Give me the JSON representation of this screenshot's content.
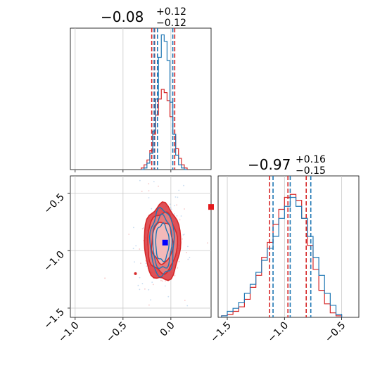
{
  "chart_data": {
    "type": "corner",
    "grid": true,
    "colors": {
      "red": "#d62728",
      "blue": "#1f77b4",
      "marker_blue": "#0000ff"
    },
    "param_ranges": {
      "p1": [
        -1.05,
        0.42
      ],
      "p2": [
        -1.58,
        -0.35
      ]
    },
    "ticks": {
      "p1": [
        -1.0,
        -0.5,
        0.0
      ],
      "p1_labels": [
        "−1.0",
        "−0.5",
        "0.0"
      ],
      "p2": [
        -1.5,
        -1.0,
        -0.5
      ],
      "p2_labels": [
        "−1.5",
        "−1.0",
        "−0.5"
      ]
    },
    "titles": [
      {
        "main": "−0.08",
        "plus": "+0.12",
        "minus": "−0.12"
      },
      {
        "main": "−0.97",
        "plus": "+0.16",
        "minus": "−0.15"
      }
    ],
    "hist_p1": {
      "bin_edges": [
        -0.31,
        -0.28,
        -0.25,
        -0.22,
        -0.19,
        -0.16,
        -0.13,
        -0.1,
        -0.07,
        -0.04,
        -0.01,
        0.02,
        0.05,
        0.08,
        0.11,
        0.14,
        0.17
      ],
      "red": [
        1,
        3,
        6,
        12,
        22,
        34,
        44,
        50,
        48,
        43,
        33,
        22,
        13,
        7,
        3,
        1
      ],
      "blue": [
        0,
        1,
        4,
        10,
        24,
        44,
        70,
        84,
        80,
        68,
        42,
        22,
        9,
        3,
        1,
        0
      ],
      "quantile_lines_red": [
        -0.2,
        -0.17,
        0.04
      ],
      "quantile_lines_blue": [
        -0.175,
        -0.14,
        0.02
      ]
    },
    "hist_p2": {
      "bin_edges": [
        -1.55,
        -1.5,
        -1.45,
        -1.4,
        -1.35,
        -1.3,
        -1.25,
        -1.2,
        -1.15,
        -1.1,
        -1.05,
        -1.0,
        -0.95,
        -0.9,
        -0.85,
        -0.8,
        -0.75,
        -0.7,
        -0.65,
        -0.6,
        -0.55,
        -0.5
      ],
      "red": [
        1,
        2,
        4,
        7,
        12,
        20,
        28,
        40,
        50,
        62,
        72,
        80,
        82,
        78,
        66,
        48,
        32,
        18,
        9,
        3,
        1
      ],
      "blue": [
        1,
        4,
        6,
        10,
        16,
        22,
        30,
        38,
        46,
        54,
        66,
        74,
        80,
        74,
        66,
        54,
        40,
        28,
        16,
        8,
        2
      ],
      "quantile_lines_red": [
        -1.13,
        -0.97,
        -0.81
      ],
      "quantile_lines_blue": [
        -1.1,
        -0.95,
        -0.77
      ]
    },
    "scatter_2d": {
      "center": [
        -0.09,
        -0.93
      ],
      "red_contour_sigmas": [
        [
          0.11,
          0.18
        ],
        [
          0.155,
          0.26
        ],
        [
          0.19,
          0.33
        ]
      ],
      "blue_contour_sigmas": [
        [
          0.07,
          0.16
        ],
        [
          0.1,
          0.23
        ],
        [
          0.125,
          0.29
        ]
      ],
      "blue_marker": [
        -0.06,
        -0.93
      ],
      "red_marker": [
        0.42,
        -0.62
      ]
    }
  }
}
